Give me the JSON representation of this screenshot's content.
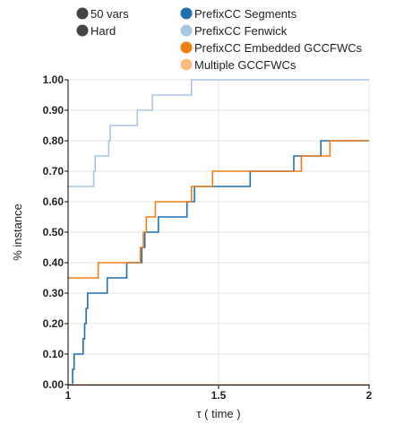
{
  "chart_data": {
    "type": "line",
    "step": true,
    "xlabel": "τ ( time )",
    "ylabel": "% instance",
    "xlim": [
      1,
      2
    ],
    "ylim": [
      0,
      1
    ],
    "x_ticks": [
      1,
      1.5,
      2
    ],
    "x_tick_labels": [
      "1",
      "1.5",
      "2"
    ],
    "y_ticks": [
      0,
      0.1,
      0.2,
      0.3,
      0.4,
      0.5,
      0.6,
      0.7,
      0.8,
      0.9,
      1.0
    ],
    "y_tick_labels": [
      "0.00",
      "0.10",
      "0.20",
      "0.30",
      "0.40",
      "0.50",
      "0.60",
      "0.70",
      "0.80",
      "0.90",
      "1.00"
    ],
    "grid": true,
    "legend": {
      "placement": "top",
      "filters": [
        {
          "label": "50 vars",
          "color": "#444444"
        },
        {
          "label": "Hard",
          "color": "#444444"
        }
      ],
      "entries": [
        {
          "label": "PrefixCC Segments",
          "color": "#1f6fb0"
        },
        {
          "label": "PrefixCC Fenwick",
          "color": "#a9c6e6"
        },
        {
          "label": "PrefixCC Embedded GCCFWCs",
          "color": "#f07d15"
        },
        {
          "label": "Multiple GCCFWCs",
          "color": "#fbbb80"
        }
      ]
    },
    "series": [
      {
        "name": "PrefixCC Segments",
        "color": "#1f6fb0",
        "points": [
          [
            1.0,
            0.0
          ],
          [
            1.015,
            0.05
          ],
          [
            1.02,
            0.1
          ],
          [
            1.05,
            0.15
          ],
          [
            1.055,
            0.2
          ],
          [
            1.06,
            0.25
          ],
          [
            1.065,
            0.3
          ],
          [
            1.13,
            0.35
          ],
          [
            1.195,
            0.4
          ],
          [
            1.245,
            0.45
          ],
          [
            1.255,
            0.5
          ],
          [
            1.3,
            0.55
          ],
          [
            1.395,
            0.6
          ],
          [
            1.42,
            0.65
          ],
          [
            1.605,
            0.7
          ],
          [
            1.75,
            0.75
          ],
          [
            1.84,
            0.8
          ],
          [
            2.0,
            0.8
          ]
        ]
      },
      {
        "name": "PrefixCC Fenwick",
        "color": "#a9c6e6",
        "points": [
          [
            1.0,
            0.65
          ],
          [
            1.085,
            0.7
          ],
          [
            1.09,
            0.75
          ],
          [
            1.135,
            0.8
          ],
          [
            1.14,
            0.85
          ],
          [
            1.23,
            0.9
          ],
          [
            1.28,
            0.95
          ],
          [
            1.41,
            1.0
          ],
          [
            2.0,
            1.0
          ]
        ]
      },
      {
        "name": "PrefixCC Embedded GCCFWCs",
        "color": "#f07d15",
        "points": [
          [
            1.0,
            0.35
          ],
          [
            1.1,
            0.4
          ],
          [
            1.24,
            0.45
          ],
          [
            1.25,
            0.5
          ],
          [
            1.26,
            0.55
          ],
          [
            1.29,
            0.6
          ],
          [
            1.41,
            0.65
          ],
          [
            1.48,
            0.7
          ],
          [
            1.775,
            0.75
          ],
          [
            1.87,
            0.8
          ],
          [
            2.0,
            0.8
          ]
        ]
      },
      {
        "name": "Multiple GCCFWCs",
        "color": "#fbbb80",
        "points": [
          [
            1.0,
            0.0
          ],
          [
            2.0,
            0.0
          ]
        ]
      }
    ]
  }
}
